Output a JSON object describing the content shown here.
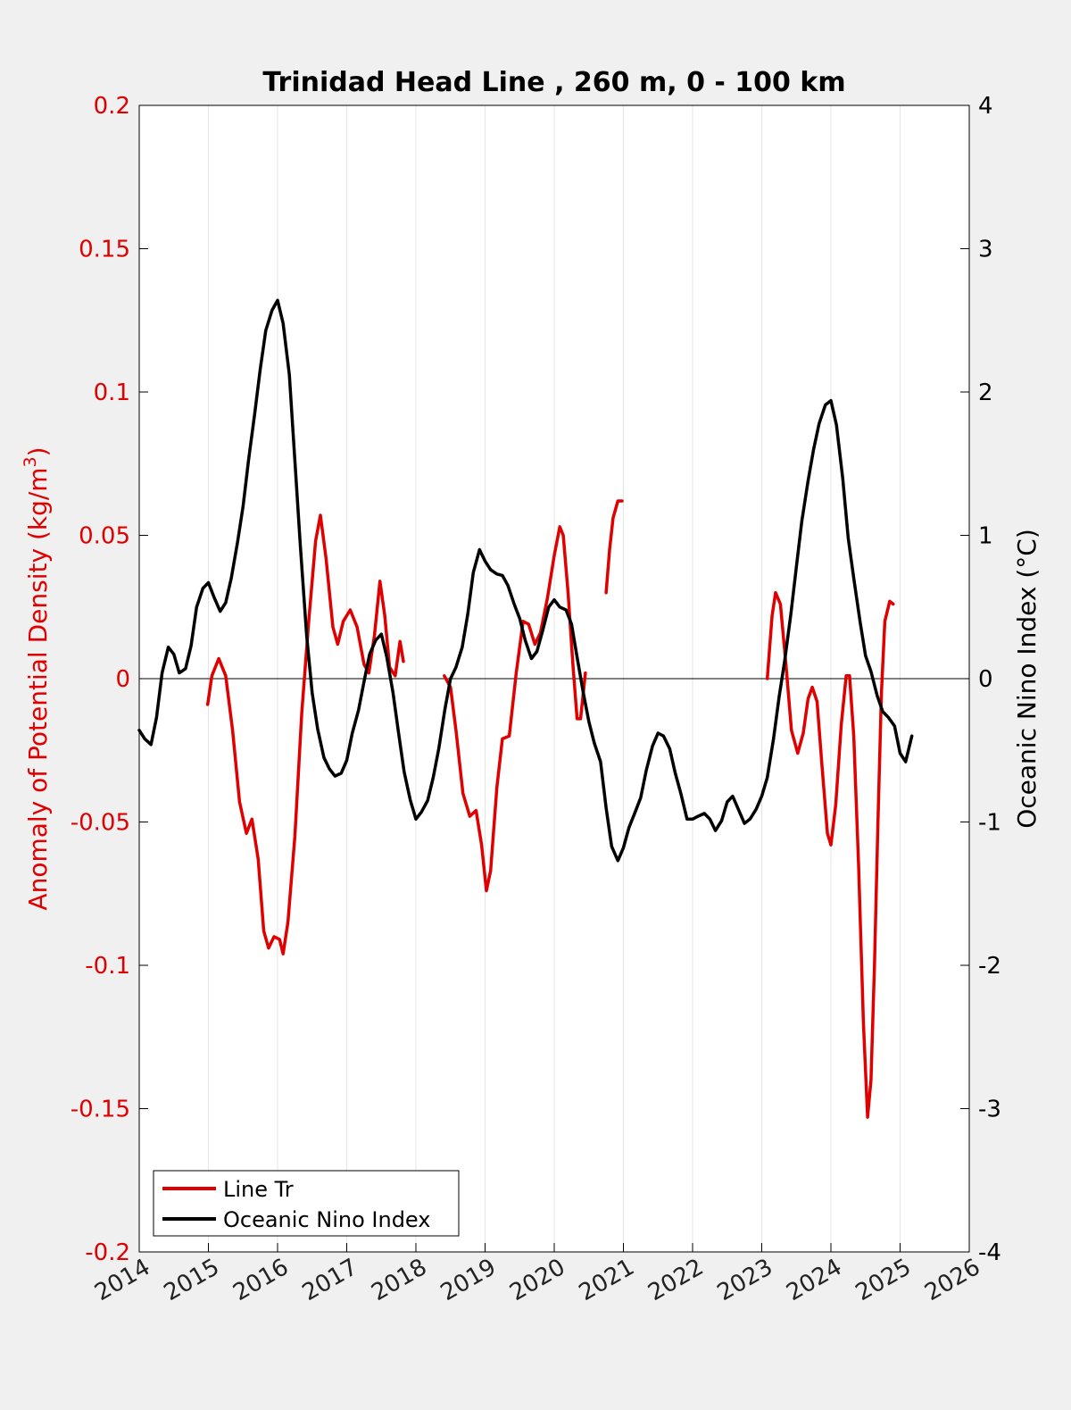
{
  "chart_data": {
    "type": "line",
    "title": "Trinidad Head Line , 260 m, 0 - 100 km",
    "xlabel": "",
    "ylabel_left": "Anomaly of Potential Density (kg/m",
    "ylabel_left_sup": "3",
    "ylabel_left_close": ")",
    "ylabel_right": "Oceanic Nino Index (°C)",
    "xlim": [
      2014,
      2026
    ],
    "ylim_left": [
      -0.2,
      0.2
    ],
    "ylim_right": [
      -4,
      4
    ],
    "x_ticks": [
      "2014",
      "2015",
      "2016",
      "2017",
      "2018",
      "2019",
      "2020",
      "2021",
      "2022",
      "2023",
      "2024",
      "2025",
      "2026"
    ],
    "y_left_ticks": [
      "-0.2",
      "-0.15",
      "-0.1",
      "-0.05",
      "0",
      "0.05",
      "0.1",
      "0.15",
      "0.2"
    ],
    "y_right_ticks": [
      "-4",
      "-3",
      "-2",
      "-1",
      "0",
      "1",
      "2",
      "3",
      "4"
    ],
    "grid": "vertical",
    "legend_position": "bottom-left",
    "colors": {
      "left_axis": "#e00000",
      "right_axis": "#000000",
      "line_tr": "#e00000",
      "oni": "#000000"
    },
    "series": [
      {
        "name": "Line Tr",
        "axis": "left",
        "color": "#e00000",
        "segments": [
          [
            [
              2014.99,
              -0.009
            ],
            [
              2015.05,
              0.001
            ],
            [
              2015.15,
              0.007
            ],
            [
              2015.25,
              0.001
            ],
            [
              2015.35,
              -0.018
            ],
            [
              2015.45,
              -0.043
            ],
            [
              2015.55,
              -0.054
            ],
            [
              2015.63,
              -0.049
            ],
            [
              2015.72,
              -0.063
            ],
            [
              2015.8,
              -0.088
            ],
            [
              2015.87,
              -0.094
            ],
            [
              2015.95,
              -0.09
            ],
            [
              2016.03,
              -0.091
            ],
            [
              2016.08,
              -0.096
            ],
            [
              2016.15,
              -0.085
            ],
            [
              2016.25,
              -0.055
            ],
            [
              2016.35,
              -0.012
            ],
            [
              2016.45,
              0.02
            ],
            [
              2016.55,
              0.048
            ],
            [
              2016.62,
              0.057
            ],
            [
              2016.7,
              0.042
            ],
            [
              2016.8,
              0.018
            ],
            [
              2016.87,
              0.012
            ],
            [
              2016.95,
              0.02
            ],
            [
              2017.05,
              0.024
            ],
            [
              2017.15,
              0.018
            ],
            [
              2017.25,
              0.005
            ],
            [
              2017.32,
              0.002
            ],
            [
              2017.4,
              0.015
            ],
            [
              2017.48,
              0.034
            ],
            [
              2017.55,
              0.022
            ],
            [
              2017.62,
              0.004
            ],
            [
              2017.7,
              0.001
            ],
            [
              2017.77,
              0.013
            ],
            [
              2017.82,
              0.006
            ]
          ],
          [
            [
              2018.41,
              0.001
            ],
            [
              2018.5,
              -0.003
            ],
            [
              2018.58,
              -0.018
            ],
            [
              2018.68,
              -0.04
            ],
            [
              2018.78,
              -0.048
            ],
            [
              2018.87,
              -0.046
            ],
            [
              2018.95,
              -0.058
            ],
            [
              2019.02,
              -0.074
            ],
            [
              2019.08,
              -0.067
            ],
            [
              2019.17,
              -0.038
            ],
            [
              2019.25,
              -0.021
            ],
            [
              2019.35,
              -0.02
            ],
            [
              2019.45,
              0.002
            ],
            [
              2019.55,
              0.02
            ],
            [
              2019.63,
              0.019
            ],
            [
              2019.72,
              0.012
            ],
            [
              2019.8,
              0.016
            ],
            [
              2019.9,
              0.028
            ],
            [
              2020,
              0.043
            ],
            [
              2020.08,
              0.053
            ],
            [
              2020.13,
              0.05
            ],
            [
              2020.2,
              0.03
            ],
            [
              2020.27,
              0.005
            ],
            [
              2020.33,
              -0.014
            ],
            [
              2020.38,
              -0.014
            ],
            [
              2020.45,
              0.002
            ]
          ],
          [
            [
              2020.75,
              0.03
            ],
            [
              2020.8,
              0.045
            ],
            [
              2020.85,
              0.056
            ],
            [
              2020.92,
              0.062
            ],
            [
              2020.98,
              0.062
            ]
          ],
          [
            [
              2023.08,
              0
            ],
            [
              2023.15,
              0.022
            ],
            [
              2023.2,
              0.03
            ],
            [
              2023.27,
              0.026
            ],
            [
              2023.35,
              0.005
            ],
            [
              2023.43,
              -0.018
            ],
            [
              2023.52,
              -0.026
            ],
            [
              2023.6,
              -0.019
            ],
            [
              2023.67,
              -0.007
            ],
            [
              2023.73,
              -0.003
            ],
            [
              2023.8,
              -0.008
            ],
            [
              2023.87,
              -0.03
            ],
            [
              2023.95,
              -0.054
            ],
            [
              2024.0,
              -0.058
            ],
            [
              2024.07,
              -0.044
            ],
            [
              2024.15,
              -0.016
            ],
            [
              2024.22,
              0.001
            ],
            [
              2024.27,
              0.001
            ],
            [
              2024.33,
              -0.02
            ],
            [
              2024.4,
              -0.065
            ],
            [
              2024.47,
              -0.12
            ],
            [
              2024.53,
              -0.153
            ],
            [
              2024.58,
              -0.14
            ],
            [
              2024.63,
              -0.1
            ],
            [
              2024.68,
              -0.05
            ],
            [
              2024.73,
              -0.005
            ],
            [
              2024.78,
              0.02
            ],
            [
              2024.85,
              0.027
            ],
            [
              2024.9,
              0.026
            ]
          ]
        ]
      },
      {
        "name": "Oceanic Nino Index",
        "axis": "right",
        "color": "#000000",
        "segments": [
          [
            [
              2014,
              -0.36
            ],
            [
              2014.08,
              -0.42
            ],
            [
              2014.17,
              -0.46
            ],
            [
              2014.25,
              -0.27
            ],
            [
              2014.33,
              0.04
            ],
            [
              2014.42,
              0.22
            ],
            [
              2014.5,
              0.17
            ],
            [
              2014.58,
              0.04
            ],
            [
              2014.67,
              0.07
            ],
            [
              2014.75,
              0.23
            ],
            [
              2014.83,
              0.5
            ],
            [
              2014.92,
              0.63
            ],
            [
              2015,
              0.67
            ],
            [
              2015.08,
              0.57
            ],
            [
              2015.17,
              0.47
            ],
            [
              2015.25,
              0.53
            ],
            [
              2015.33,
              0.7
            ],
            [
              2015.42,
              0.95
            ],
            [
              2015.5,
              1.2
            ],
            [
              2015.58,
              1.52
            ],
            [
              2015.67,
              1.85
            ],
            [
              2015.75,
              2.16
            ],
            [
              2015.83,
              2.43
            ],
            [
              2015.92,
              2.57
            ],
            [
              2016,
              2.64
            ],
            [
              2016.08,
              2.48
            ],
            [
              2016.17,
              2.12
            ],
            [
              2016.25,
              1.52
            ],
            [
              2016.33,
              0.92
            ],
            [
              2016.42,
              0.3
            ],
            [
              2016.5,
              -0.1
            ],
            [
              2016.58,
              -0.35
            ],
            [
              2016.67,
              -0.55
            ],
            [
              2016.75,
              -0.63
            ],
            [
              2016.83,
              -0.68
            ],
            [
              2016.92,
              -0.66
            ],
            [
              2017,
              -0.57
            ],
            [
              2017.08,
              -0.38
            ],
            [
              2017.17,
              -0.22
            ],
            [
              2017.25,
              -0.02
            ],
            [
              2017.33,
              0.17
            ],
            [
              2017.42,
              0.27
            ],
            [
              2017.5,
              0.31
            ],
            [
              2017.58,
              0.15
            ],
            [
              2017.67,
              -0.1
            ],
            [
              2017.75,
              -0.38
            ],
            [
              2017.83,
              -0.65
            ],
            [
              2017.92,
              -0.85
            ],
            [
              2018,
              -0.98
            ],
            [
              2018.08,
              -0.93
            ],
            [
              2018.17,
              -0.85
            ],
            [
              2018.25,
              -0.69
            ],
            [
              2018.33,
              -0.49
            ],
            [
              2018.42,
              -0.21
            ],
            [
              2018.5,
              0
            ],
            [
              2018.58,
              0.08
            ],
            [
              2018.67,
              0.22
            ],
            [
              2018.75,
              0.45
            ],
            [
              2018.83,
              0.74
            ],
            [
              2018.92,
              0.9
            ],
            [
              2019,
              0.82
            ],
            [
              2019.08,
              0.76
            ],
            [
              2019.17,
              0.73
            ],
            [
              2019.25,
              0.72
            ],
            [
              2019.33,
              0.65
            ],
            [
              2019.42,
              0.52
            ],
            [
              2019.5,
              0.42
            ],
            [
              2019.58,
              0.27
            ],
            [
              2019.67,
              0.14
            ],
            [
              2019.75,
              0.19
            ],
            [
              2019.83,
              0.33
            ],
            [
              2019.92,
              0.5
            ],
            [
              2020,
              0.55
            ],
            [
              2020.08,
              0.5
            ],
            [
              2020.17,
              0.48
            ],
            [
              2020.25,
              0.38
            ],
            [
              2020.33,
              0.15
            ],
            [
              2020.42,
              -0.1
            ],
            [
              2020.5,
              -0.3
            ],
            [
              2020.58,
              -0.45
            ],
            [
              2020.67,
              -0.58
            ],
            [
              2020.75,
              -0.9
            ],
            [
              2020.83,
              -1.17
            ],
            [
              2020.92,
              -1.27
            ],
            [
              2021,
              -1.18
            ],
            [
              2021.08,
              -1.04
            ],
            [
              2021.17,
              -0.93
            ],
            [
              2021.25,
              -0.83
            ],
            [
              2021.33,
              -0.64
            ],
            [
              2021.42,
              -0.47
            ],
            [
              2021.5,
              -0.38
            ],
            [
              2021.58,
              -0.4
            ],
            [
              2021.67,
              -0.49
            ],
            [
              2021.75,
              -0.66
            ],
            [
              2021.83,
              -0.8
            ],
            [
              2021.92,
              -0.98
            ],
            [
              2022,
              -0.98
            ],
            [
              2022.08,
              -0.96
            ],
            [
              2022.17,
              -0.94
            ],
            [
              2022.25,
              -0.98
            ],
            [
              2022.33,
              -1.06
            ],
            [
              2022.42,
              -0.99
            ],
            [
              2022.5,
              -0.86
            ],
            [
              2022.58,
              -0.82
            ],
            [
              2022.67,
              -0.92
            ],
            [
              2022.75,
              -1.01
            ],
            [
              2022.83,
              -0.98
            ],
            [
              2022.92,
              -0.91
            ],
            [
              2023,
              -0.82
            ],
            [
              2023.08,
              -0.69
            ],
            [
              2023.17,
              -0.42
            ],
            [
              2023.25,
              -0.13
            ],
            [
              2023.33,
              0.12
            ],
            [
              2023.42,
              0.45
            ],
            [
              2023.5,
              0.78
            ],
            [
              2023.58,
              1.1
            ],
            [
              2023.67,
              1.38
            ],
            [
              2023.75,
              1.6
            ],
            [
              2023.83,
              1.78
            ],
            [
              2023.92,
              1.91
            ],
            [
              2024,
              1.94
            ],
            [
              2024.08,
              1.77
            ],
            [
              2024.17,
              1.4
            ],
            [
              2024.25,
              0.98
            ],
            [
              2024.33,
              0.7
            ],
            [
              2024.42,
              0.4
            ],
            [
              2024.5,
              0.16
            ],
            [
              2024.58,
              0.05
            ],
            [
              2024.67,
              -0.12
            ],
            [
              2024.75,
              -0.23
            ],
            [
              2024.83,
              -0.27
            ],
            [
              2024.92,
              -0.33
            ],
            [
              2025,
              -0.52
            ],
            [
              2025.08,
              -0.58
            ],
            [
              2025.17,
              -0.4
            ]
          ]
        ]
      }
    ]
  }
}
